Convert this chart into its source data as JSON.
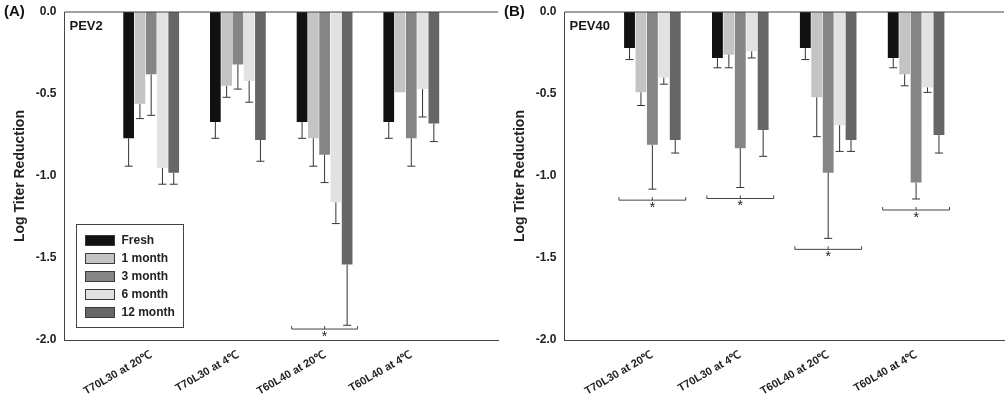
{
  "chart_data": [
    {
      "type": "bar",
      "title": "(A)",
      "ylabel": "Log Titer Reduction",
      "categories": [
        "T70L30 at 20℃",
        "T70L30 at 4℃",
        "T60L40 at 20℃",
        "T60L40 at 4℃"
      ],
      "ylim": [
        -2,
        0
      ],
      "yticks": [
        {
          "value": 0,
          "label": "0.0"
        },
        {
          "value": -0.5,
          "label": "-0.5"
        },
        {
          "value": -1,
          "label": "-1.0"
        },
        {
          "value": -1.5,
          "label": "-1.5"
        },
        {
          "value": -2,
          "label": "-2.0"
        }
      ],
      "legend": "bottom left",
      "grid": false,
      "annotations": [
        "PEV2",
        "*"
      ],
      "series": [
        {
          "name": "Fresh",
          "color": "#111111",
          "values": [
            -0.77,
            -0.67,
            -0.67,
            -0.67
          ],
          "errors": [
            [
              -0.94,
              -0.77
            ],
            [
              -0.77,
              -0.67
            ],
            [
              -0.77,
              -0.67
            ],
            [
              -0.77,
              -0.67
            ]
          ]
        },
        {
          "name": "1 month",
          "color": "#c4c4c4",
          "values": [
            -0.56,
            -0.45,
            -0.77,
            -0.49
          ],
          "errors": [
            [
              -0.65,
              -0.56
            ],
            [
              -0.52,
              -0.45
            ],
            [
              -0.94,
              -0.77
            ],
            null
          ]
        },
        {
          "name": "3 month",
          "color": "#858585",
          "values": [
            -0.38,
            -0.32,
            -0.87,
            -0.77
          ],
          "errors": [
            [
              -0.63,
              -0.38
            ],
            [
              -0.47,
              -0.32
            ],
            [
              -1.04,
              -0.87
            ],
            [
              -0.94,
              -0.77
            ]
          ]
        },
        {
          "name": "6 month",
          "color": "#e2e2e2",
          "values": [
            -0.95,
            -0.42,
            -1.16,
            -0.47
          ],
          "errors": [
            [
              -1.05,
              -0.95
            ],
            [
              -0.55,
              -0.42
            ],
            [
              -1.29,
              -1.16
            ],
            [
              -0.64,
              -0.47
            ]
          ]
        },
        {
          "name": "12 month",
          "color": "#666666",
          "values": [
            -0.98,
            -0.78,
            -1.54,
            -0.68
          ],
          "errors": [
            [
              -1.05,
              -0.98
            ],
            [
              -0.91,
              -0.78
            ],
            [
              -1.91,
              -1.54
            ],
            [
              -0.79,
              -0.68
            ]
          ]
        }
      ]
    },
    {
      "type": "bar",
      "title": "(B)",
      "ylabel": "Log Titer Reduction",
      "categories": [
        "T70L30 at 20℃",
        "T70L30 at 4℃",
        "T60L40 at 20℃",
        "T60L40 at 4℃"
      ],
      "ylim": [
        -2,
        0
      ],
      "yticks": [
        {
          "value": 0,
          "label": "0.0"
        },
        {
          "value": -0.5,
          "label": "-0.5"
        },
        {
          "value": -1,
          "label": "-1.0"
        },
        {
          "value": -1.5,
          "label": "-1.5"
        },
        {
          "value": -2,
          "label": "-2.0"
        }
      ],
      "grid": false,
      "annotations": [
        "PEV40",
        "*",
        "*",
        "*",
        "*"
      ],
      "series": [
        {
          "color": "#111111",
          "values": [
            -0.22,
            -0.28,
            -0.22,
            -0.28
          ],
          "errors": [
            [
              -0.29,
              -0.22
            ],
            [
              -0.34,
              -0.28
            ],
            [
              -0.29,
              -0.22
            ],
            [
              -0.34,
              -0.28
            ]
          ]
        },
        {
          "color": "#c4c4c4",
          "values": [
            -0.49,
            -0.26,
            -0.52,
            -0.38
          ],
          "errors": [
            [
              -0.57,
              -0.49
            ],
            [
              -0.34,
              -0.26
            ],
            [
              -0.76,
              -0.52
            ],
            [
              -0.45,
              -0.38
            ]
          ]
        },
        {
          "color": "#858585",
          "values": [
            -0.81,
            -0.83,
            -0.98,
            -1.04
          ],
          "errors": [
            [
              -1.08,
              -0.81
            ],
            [
              -1.07,
              -0.83
            ],
            [
              -1.38,
              -0.98
            ],
            [
              -1.14,
              -1.04
            ]
          ]
        },
        {
          "color": "#e2e2e2",
          "values": [
            -0.4,
            -0.24,
            -0.69,
            -0.46
          ],
          "errors": [
            [
              -0.44,
              -0.4
            ],
            [
              -0.28,
              -0.24
            ],
            [
              -0.85,
              -0.69
            ],
            [
              -0.49,
              -0.46
            ]
          ]
        },
        {
          "color": "#666666",
          "values": [
            -0.78,
            -0.72,
            -0.78,
            -0.75
          ],
          "errors": [
            [
              -0.86,
              -0.78
            ],
            [
              -0.88,
              -0.72
            ],
            [
              -0.85,
              -0.78
            ],
            [
              -0.86,
              -0.75
            ]
          ]
        }
      ]
    }
  ]
}
